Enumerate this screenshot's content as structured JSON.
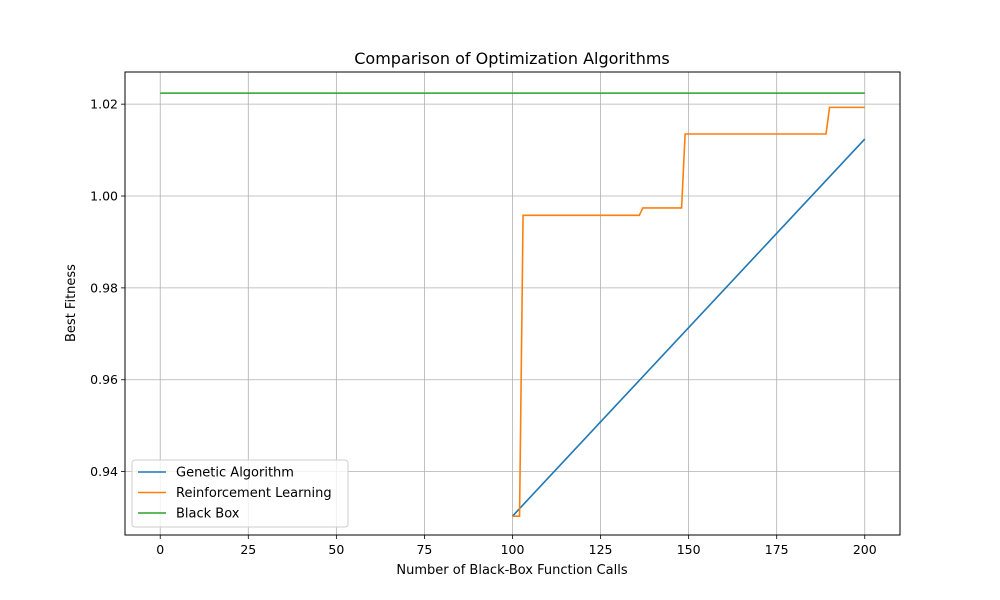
{
  "chart_data": {
    "type": "line",
    "title": "Comparison of Optimization Algorithms",
    "xlabel": "Number of Black-Box Function Calls",
    "ylabel": "Best Fitness",
    "xlim": [
      -10,
      210
    ],
    "ylim": [
      0.9262,
      1.027
    ],
    "xticks": [
      0,
      25,
      50,
      75,
      100,
      125,
      150,
      175,
      200
    ],
    "xtick_labels": [
      "0",
      "25",
      "50",
      "75",
      "100",
      "125",
      "150",
      "175",
      "200"
    ],
    "yticks": [
      0.94,
      0.96,
      0.98,
      1.0,
      1.02
    ],
    "ytick_labels": [
      "0.94",
      "0.96",
      "0.98",
      "1.00",
      "1.02"
    ],
    "grid": true,
    "legend_position": "lower-left",
    "series": [
      {
        "name": "Genetic Algorithm",
        "color": "#1f77b4",
        "x": [
          100,
          200
        ],
        "y": [
          0.9303,
          1.0124
        ]
      },
      {
        "name": "Reinforcement Learning",
        "color": "#ff7f0e",
        "x": [
          100,
          102,
          103,
          136,
          137,
          148,
          149,
          189,
          190,
          200
        ],
        "y": [
          0.9303,
          0.9303,
          0.9958,
          0.9958,
          0.9974,
          0.9974,
          1.0135,
          1.0135,
          1.0193,
          1.0193
        ]
      },
      {
        "name": "Black Box",
        "color": "#2ca02c",
        "x": [
          0,
          200
        ],
        "y": [
          1.0224,
          1.0224
        ]
      }
    ]
  }
}
